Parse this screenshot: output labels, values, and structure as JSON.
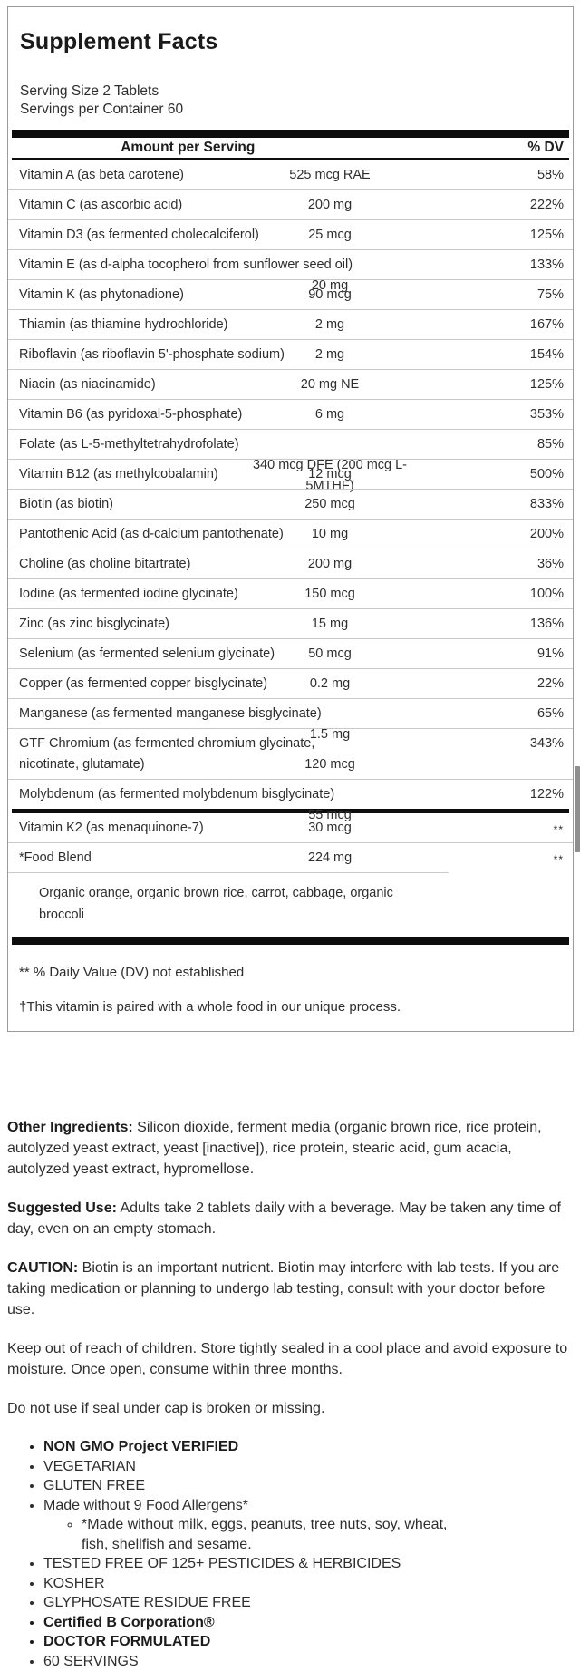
{
  "panel": {
    "title": "Supplement Facts",
    "serving_size": "Serving Size 2 Tablets",
    "servings_per_container": "Servings per Container 60",
    "header": {
      "amount": "Amount per Serving",
      "dv": "% DV"
    },
    "rows": [
      {
        "name": "Vitamin A (as beta carotene)",
        "amount": "525 mcg RAE",
        "dv": "58%",
        "two_line": false
      },
      {
        "name": "Vitamin C (as ascorbic acid)",
        "amount": "200 mg",
        "dv": "222%",
        "two_line": false
      },
      {
        "name": "Vitamin D3 (as fermented cholecalciferol)",
        "amount": "25 mcg",
        "dv": "125%",
        "two_line": false
      },
      {
        "name": "Vitamin E (as d-alpha tocopherol from sunflower seed oil)",
        "amount": "20 mg",
        "dv": "133%",
        "two_line": true
      },
      {
        "name": "Vitamin K (as phytonadione)",
        "amount": "90 mcg",
        "dv": "75%",
        "two_line": false
      },
      {
        "name": "Thiamin (as thiamine hydrochloride)",
        "amount": "2 mg",
        "dv": "167%",
        "two_line": false
      },
      {
        "name": "Riboflavin (as riboflavin 5'-phosphate sodium)",
        "amount": "2 mg",
        "dv": "154%",
        "two_line": false
      },
      {
        "name": "Niacin (as niacinamide)",
        "amount": "20 mg NE",
        "dv": "125%",
        "two_line": false
      },
      {
        "name": "Vitamin B6 (as pyridoxal-5-phosphate)",
        "amount": "6 mg",
        "dv": "353%",
        "two_line": false
      },
      {
        "name": "Folate (as L-5-methyltetrahydrofolate)",
        "amount": "340 mcg DFE (200 mcg L-5MTHF)",
        "dv": "85%",
        "two_line": true
      },
      {
        "name": "Vitamin B12 (as methylcobalamin)",
        "amount": "12 mcg",
        "dv": "500%",
        "two_line": false
      },
      {
        "name": "Biotin (as biotin)",
        "amount": "250 mcg",
        "dv": "833%",
        "two_line": false
      },
      {
        "name": "Pantothenic Acid (as d-calcium pantothenate)",
        "amount": "10 mg",
        "dv": "200%",
        "two_line": false
      },
      {
        "name": "Choline (as choline bitartrate)",
        "amount": "200 mg",
        "dv": "36%",
        "two_line": false
      },
      {
        "name": "Iodine (as fermented iodine glycinate)",
        "amount": "150 mcg",
        "dv": "100%",
        "two_line": false
      },
      {
        "name": "Zinc (as zinc bisglycinate)",
        "amount": "15 mg",
        "dv": "136%",
        "two_line": false
      },
      {
        "name": "Selenium (as fermented selenium glycinate)",
        "amount": "50 mcg",
        "dv": "91%",
        "two_line": false
      },
      {
        "name": "Copper (as fermented copper bisglycinate)",
        "amount": "0.2 mg",
        "dv": "22%",
        "two_line": false
      },
      {
        "name": "Manganese (as fermented manganese bisglycinate)",
        "amount": "1.5 mg",
        "dv": "65%",
        "two_line": true
      },
      {
        "name": "GTF Chromium (as fermented chromium glycinate, nicotinate, glutamate)",
        "amount": "120 mcg",
        "dv": "343%",
        "two_line": true
      },
      {
        "name": "Molybdenum (as fermented molybdenum bisglycinate)",
        "amount": "55 mcg",
        "dv": "122%",
        "two_line": true
      }
    ],
    "sub_rows": [
      {
        "name": "Vitamin K2 (as menaquinone-7)",
        "amount": "30 mcg",
        "dv": "**",
        "two_line": false
      },
      {
        "name": "*Food Blend",
        "amount": "224 mg",
        "dv": "**",
        "two_line": false
      }
    ],
    "food_blend_note": "Organic orange, organic brown rice, carrot, cabbage, organic broccoli",
    "footnote_dv": "** % Daily Value (DV) not established",
    "footnote_dagger": "†This vitamin is paired with a whole food in our unique process."
  },
  "info": {
    "other_ingredients": {
      "label": "Other Ingredients:",
      "text": "Silicon dioxide, ferment media (organic brown rice, rice protein, autolyzed yeast extract, yeast [inactive]), rice protein, stearic acid, gum acacia, autolyzed yeast extract, hypromellose."
    },
    "suggested_use": {
      "label": "Suggested Use:",
      "text": "Adults take 2 tablets daily with a beverage. May be taken any time of day, even on an empty stomach."
    },
    "caution": {
      "label": "CAUTION:",
      "text": "Biotin is an important nutrient. Biotin may interfere with lab tests. If you are taking medication or planning to undergo lab testing, consult with your doctor before use."
    },
    "storage": "Keep out of reach of children. Store tightly sealed in a cool place and avoid exposure to moisture. Once open, consume within three months.",
    "seal": "Do not use if seal under cap is broken or missing."
  },
  "features": [
    {
      "text": "NON GMO Project VERIFIED",
      "bold": true
    },
    {
      "text": "VEGETARIAN",
      "bold": false
    },
    {
      "text": "GLUTEN FREE",
      "bold": false
    },
    {
      "text": "Made without 9 Food Allergens*",
      "bold": false,
      "sub": [
        "*Made without milk, eggs, peanuts, tree nuts, soy, wheat, fish, shellfish and sesame."
      ]
    },
    {
      "text": "TESTED FREE OF 125+ PESTICIDES & HERBICIDES",
      "bold": false
    },
    {
      "text": "KOSHER",
      "bold": false
    },
    {
      "text": "GLYPHOSATE RESIDUE FREE",
      "bold": false
    },
    {
      "text": "Certified B Corporation®",
      "bold": true
    },
    {
      "text": "DOCTOR FORMULATED",
      "bold": true
    },
    {
      "text": "60 SERVINGS",
      "bold": false
    }
  ],
  "colors": {
    "bar": "#0d0d0d",
    "separator": "#c9c9c9",
    "box_border": "#9a9a9a",
    "text": "#333333"
  }
}
